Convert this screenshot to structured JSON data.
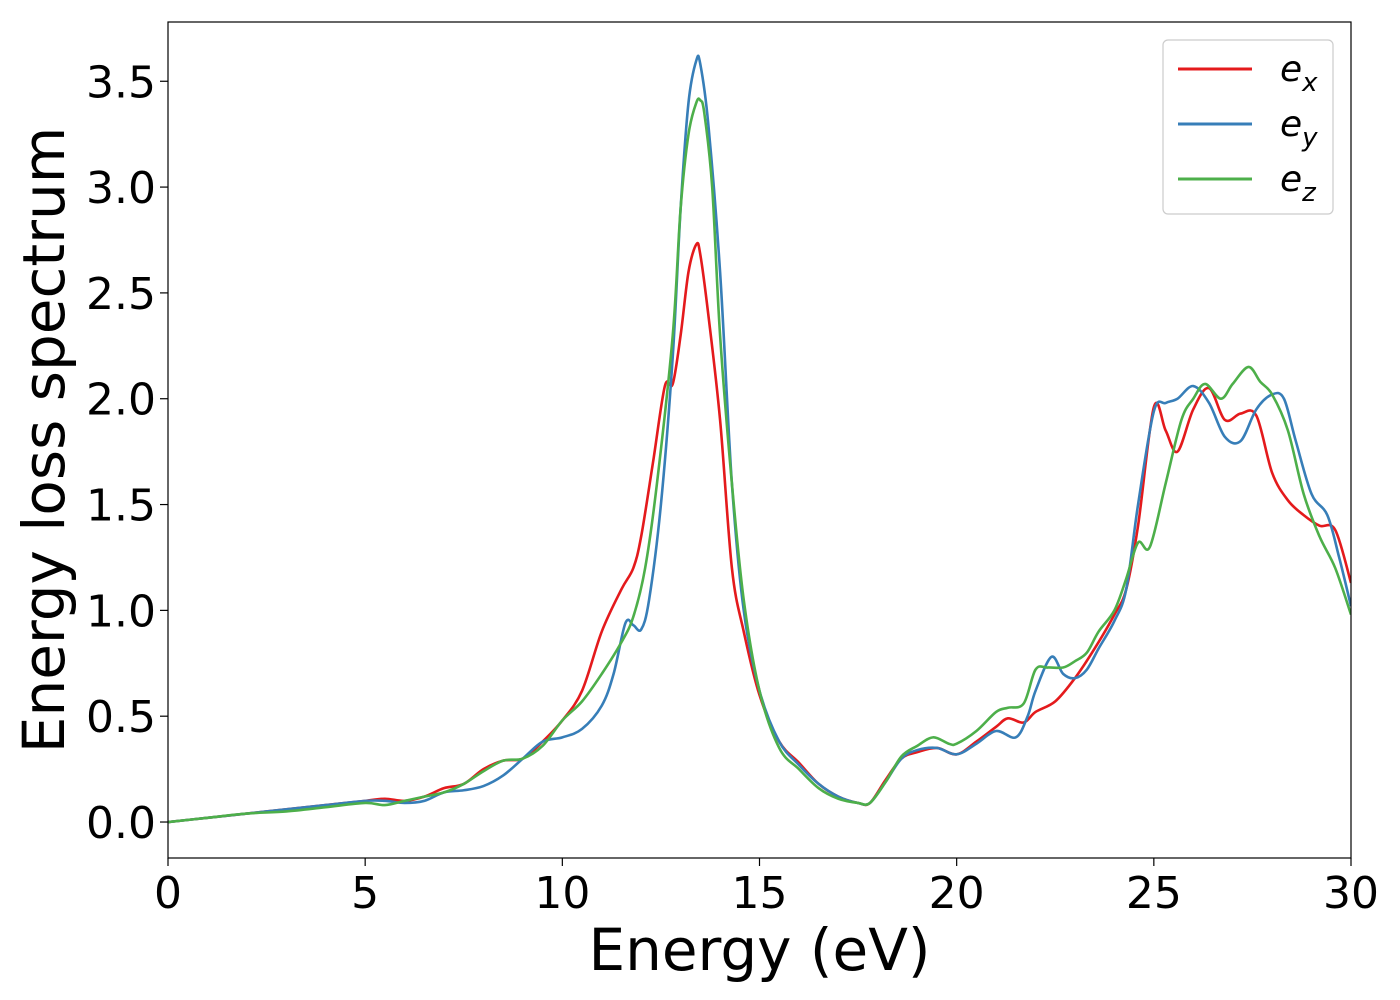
{
  "chart_data": {
    "type": "line",
    "xlabel": "Energy (eV)",
    "ylabel": "Energy loss spectrum",
    "xlim": [
      0,
      30
    ],
    "ylim": [
      -0.17,
      3.78
    ],
    "xticks": [
      0,
      5,
      10,
      15,
      20,
      25,
      30
    ],
    "xtick_labels": [
      "0",
      "5",
      "10",
      "15",
      "20",
      "25",
      "30"
    ],
    "yticks": [
      0.0,
      0.5,
      1.0,
      1.5,
      2.0,
      2.5,
      3.0,
      3.5
    ],
    "ytick_labels": [
      "0.0",
      "0.5",
      "1.0",
      "1.5",
      "2.0",
      "2.5",
      "3.0",
      "3.5"
    ],
    "grid": false,
    "legend_position": "top-right",
    "series": [
      {
        "name": "e_x",
        "label_base": "e",
        "label_sub": "x",
        "color": "#e41a1c",
        "x": [
          0,
          1,
          2,
          3,
          4,
          5,
          5.5,
          6,
          6.5,
          7,
          7.5,
          8,
          8.5,
          9,
          9.5,
          10,
          10.5,
          11,
          11.5,
          11.8,
          12,
          12.3,
          12.6,
          12.8,
          13.0,
          13.2,
          13.4,
          13.5,
          13.7,
          14.0,
          14.3,
          14.6,
          15.0,
          15.5,
          16.0,
          16.5,
          17.0,
          17.5,
          17.8,
          18.2,
          18.6,
          19.0,
          19.5,
          20.0,
          20.5,
          21.0,
          21.3,
          21.7,
          22.0,
          22.5,
          23.0,
          23.5,
          24.0,
          24.3,
          24.6,
          25.0,
          25.3,
          25.6,
          26.0,
          26.4,
          26.8,
          27.2,
          27.6,
          28.0,
          28.4,
          28.8,
          29.2,
          29.6,
          30.0
        ],
        "y": [
          0.0,
          0.02,
          0.04,
          0.06,
          0.08,
          0.1,
          0.11,
          0.1,
          0.12,
          0.16,
          0.18,
          0.25,
          0.29,
          0.3,
          0.38,
          0.48,
          0.62,
          0.9,
          1.1,
          1.2,
          1.35,
          1.7,
          2.06,
          2.07,
          2.3,
          2.6,
          2.73,
          2.68,
          2.4,
          1.9,
          1.2,
          0.9,
          0.6,
          0.38,
          0.28,
          0.18,
          0.12,
          0.09,
          0.09,
          0.2,
          0.3,
          0.33,
          0.35,
          0.32,
          0.38,
          0.45,
          0.49,
          0.47,
          0.52,
          0.57,
          0.68,
          0.82,
          0.98,
          1.1,
          1.4,
          1.96,
          1.85,
          1.75,
          1.95,
          2.05,
          1.9,
          1.93,
          1.92,
          1.65,
          1.52,
          1.45,
          1.4,
          1.38,
          1.13
        ]
      },
      {
        "name": "e_y",
        "label_base": "e",
        "label_sub": "y",
        "color": "#377eb8",
        "x": [
          0,
          1,
          2,
          3,
          4,
          5,
          5.5,
          6,
          6.5,
          7,
          7.5,
          8,
          8.5,
          9,
          9.5,
          10,
          10.5,
          11,
          11.3,
          11.6,
          11.8,
          12.0,
          12.2,
          12.5,
          12.8,
          13.0,
          13.2,
          13.4,
          13.5,
          13.7,
          14.0,
          14.3,
          14.6,
          15.0,
          15.5,
          16.0,
          16.5,
          17.0,
          17.5,
          17.8,
          18.2,
          18.6,
          19.0,
          19.5,
          20.0,
          20.5,
          21.0,
          21.5,
          21.8,
          22.0,
          22.4,
          22.7,
          23.0,
          23.3,
          23.6,
          24.0,
          24.3,
          24.6,
          25.0,
          25.3,
          25.6,
          26.0,
          26.4,
          26.8,
          27.2,
          27.6,
          28.0,
          28.3,
          28.6,
          29.0,
          29.4,
          29.7,
          30.0
        ],
        "y": [
          0.0,
          0.02,
          0.04,
          0.06,
          0.08,
          0.1,
          0.1,
          0.09,
          0.1,
          0.14,
          0.15,
          0.17,
          0.22,
          0.3,
          0.38,
          0.4,
          0.44,
          0.55,
          0.7,
          0.94,
          0.93,
          0.91,
          1.05,
          1.5,
          2.2,
          2.9,
          3.4,
          3.6,
          3.58,
          3.3,
          2.6,
          1.6,
          1.0,
          0.62,
          0.38,
          0.27,
          0.18,
          0.12,
          0.09,
          0.09,
          0.19,
          0.3,
          0.34,
          0.35,
          0.32,
          0.37,
          0.43,
          0.4,
          0.5,
          0.62,
          0.78,
          0.7,
          0.68,
          0.72,
          0.82,
          0.95,
          1.1,
          1.5,
          1.94,
          1.98,
          2.0,
          2.06,
          1.98,
          1.82,
          1.8,
          1.95,
          2.02,
          2.0,
          1.8,
          1.55,
          1.45,
          1.25,
          1.02
        ]
      },
      {
        "name": "e_z",
        "label_base": "e",
        "label_sub": "z",
        "color": "#4daf4a",
        "x": [
          0,
          1,
          2,
          3,
          4,
          5,
          5.5,
          6,
          6.5,
          7,
          7.5,
          8,
          8.5,
          9,
          9.5,
          10,
          10.5,
          11,
          11.5,
          11.8,
          12.1,
          12.4,
          12.8,
          13.0,
          13.2,
          13.4,
          13.5,
          13.6,
          13.8,
          14.0,
          14.3,
          14.6,
          15.0,
          15.5,
          16.0,
          16.5,
          17.0,
          17.5,
          17.8,
          18.2,
          18.6,
          19.0,
          19.4,
          19.8,
          20.0,
          20.5,
          21.0,
          21.3,
          21.7,
          22.0,
          22.3,
          22.7,
          23.0,
          23.3,
          23.6,
          24.0,
          24.3,
          24.6,
          24.9,
          25.3,
          25.7,
          26.0,
          26.3,
          26.7,
          27.0,
          27.4,
          27.7,
          28.0,
          28.4,
          28.8,
          29.2,
          29.6,
          30.0
        ],
        "y": [
          0.0,
          0.02,
          0.04,
          0.05,
          0.07,
          0.09,
          0.08,
          0.1,
          0.12,
          0.14,
          0.18,
          0.24,
          0.29,
          0.3,
          0.36,
          0.48,
          0.57,
          0.7,
          0.85,
          0.97,
          1.2,
          1.6,
          2.3,
          2.9,
          3.25,
          3.4,
          3.41,
          3.35,
          3.0,
          2.3,
          1.6,
          1.05,
          0.62,
          0.35,
          0.25,
          0.16,
          0.11,
          0.09,
          0.09,
          0.19,
          0.31,
          0.36,
          0.4,
          0.37,
          0.37,
          0.43,
          0.52,
          0.54,
          0.56,
          0.72,
          0.73,
          0.73,
          0.76,
          0.8,
          0.9,
          1.0,
          1.15,
          1.32,
          1.3,
          1.6,
          1.9,
          2.0,
          2.07,
          2.0,
          2.07,
          2.15,
          2.08,
          2.02,
          1.85,
          1.55,
          1.35,
          1.2,
          0.98
        ]
      }
    ]
  }
}
